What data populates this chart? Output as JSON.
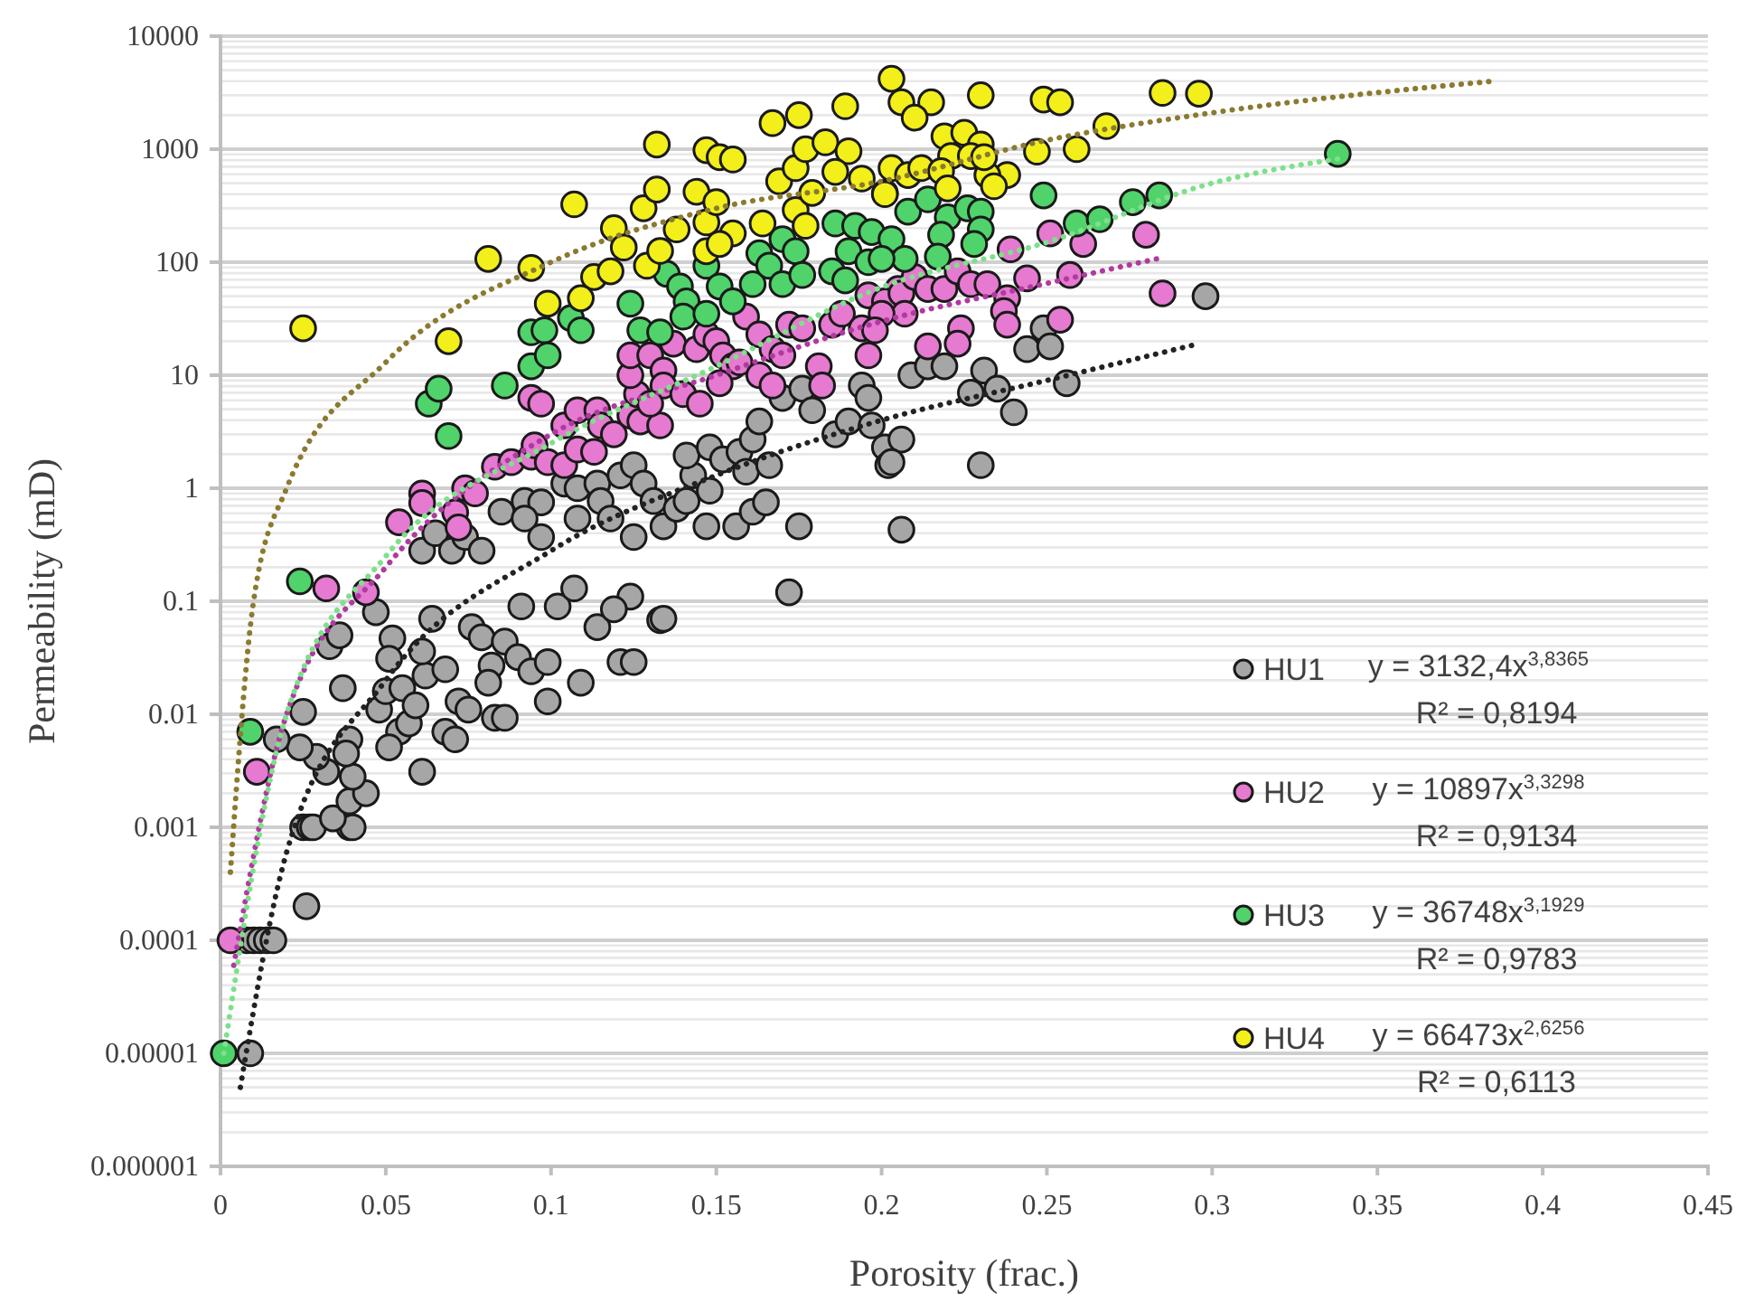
{
  "chart_data": {
    "type": "scatter",
    "xlabel": "Porosity (frac.)",
    "ylabel": "Permeability (mD)",
    "xlim": [
      0,
      0.45
    ],
    "xticks": [
      0,
      0.05,
      0.1,
      0.15,
      0.2,
      0.25,
      0.3,
      0.35,
      0.4,
      0.45
    ],
    "ylim": [
      1e-06,
      10000
    ],
    "yticks": [
      {
        "value": 1e-06,
        "label": "0.000001"
      },
      {
        "value": 1e-05,
        "label": "0.00001"
      },
      0.0001,
      0.001,
      0.01,
      0.1,
      1,
      10,
      100,
      1000,
      10000
    ],
    "log": "y",
    "grid": "y",
    "legend": "right",
    "marker": "circle",
    "annotations": [
      "y = 3132,4x$^{3,8365}$",
      "R² = 0,8194",
      "y = 10897x$^{3,3298}$",
      "R² = 0,9134",
      "y = 36748x$^{3,1929}$",
      "R² = 0,9783",
      "y = 66473x$^{2,6256}$",
      "R² = 0,6113"
    ],
    "series": [
      {
        "name": "HU1",
        "color": "#a6a6a6",
        "x": [
          0.008,
          0.01,
          0.012,
          0.014,
          0.016,
          0.009,
          0.026,
          0.025,
          0.027,
          0.028,
          0.039,
          0.04,
          0.034,
          0.039,
          0.044,
          0.04,
          0.032,
          0.029,
          0.024,
          0.017,
          0.025,
          0.039,
          0.038,
          0.037,
          0.033,
          0.036,
          0.047,
          0.052,
          0.051,
          0.061,
          0.054,
          0.051,
          0.048,
          0.05,
          0.057,
          0.055,
          0.059,
          0.062,
          0.061,
          0.064,
          0.068,
          0.068,
          0.071,
          0.072,
          0.075,
          0.076,
          0.079,
          0.082,
          0.083,
          0.086,
          0.081,
          0.086,
          0.09,
          0.094,
          0.099,
          0.099,
          0.109,
          0.121,
          0.125,
          0.133,
          0.172,
          0.134,
          0.114,
          0.124,
          0.119,
          0.091,
          0.102,
          0.107,
          0.061,
          0.065,
          0.07,
          0.074,
          0.079,
          0.085,
          0.092,
          0.097,
          0.092,
          0.097,
          0.104,
          0.108,
          0.114,
          0.115,
          0.121,
          0.125,
          0.128,
          0.131,
          0.108,
          0.118,
          0.125,
          0.134,
          0.138,
          0.141,
          0.143,
          0.141,
          0.148,
          0.152,
          0.157,
          0.161,
          0.163,
          0.148,
          0.147,
          0.156,
          0.161,
          0.165,
          0.175,
          0.159,
          0.166,
          0.17,
          0.176,
          0.179,
          0.186,
          0.19,
          0.194,
          0.196,
          0.201,
          0.202,
          0.197,
          0.206,
          0.203,
          0.206,
          0.209,
          0.214,
          0.219,
          0.227,
          0.231,
          0.235,
          0.24,
          0.23,
          0.244,
          0.249,
          0.251,
          0.256,
          0.298
        ],
        "values": [
          0.0001,
          0.0001,
          0.0001,
          0.0001,
          0.0001,
          1e-05,
          0.0002,
          0.001,
          0.001,
          0.001,
          0.001,
          0.001,
          0.0012,
          0.0017,
          0.002,
          0.0028,
          0.0031,
          0.0042,
          0.0051,
          0.006,
          0.0105,
          0.006,
          0.0045,
          0.017,
          0.04,
          0.05,
          0.08,
          0.047,
          0.031,
          0.0031,
          0.007,
          0.0051,
          0.011,
          0.016,
          0.0083,
          0.017,
          0.012,
          0.022,
          0.036,
          0.07,
          0.025,
          0.007,
          0.006,
          0.013,
          0.011,
          0.059,
          0.048,
          0.027,
          0.0093,
          0.0093,
          0.019,
          0.044,
          0.032,
          0.024,
          0.029,
          0.013,
          0.019,
          0.029,
          0.029,
          0.068,
          0.12,
          0.07,
          0.059,
          0.11,
          0.085,
          0.09,
          0.09,
          0.13,
          0.28,
          0.4,
          0.28,
          0.37,
          0.28,
          0.62,
          0.77,
          0.75,
          0.54,
          0.37,
          1.1,
          1,
          1.1,
          0.77,
          1.3,
          1.6,
          1.1,
          0.77,
          0.54,
          0.54,
          0.37,
          0.46,
          0.66,
          0.77,
          1.3,
          1.95,
          2.3,
          1.8,
          2.1,
          2.7,
          3.9,
          0.95,
          0.46,
          0.46,
          0.62,
          0.75,
          0.46,
          1.4,
          1.6,
          6.3,
          7.6,
          4.9,
          3,
          3.9,
          8.1,
          6.3,
          2.3,
          1.6,
          3.6,
          2.7,
          1.7,
          0.43,
          10,
          12,
          12,
          7,
          11,
          7.6,
          4.7,
          1.6,
          17,
          26,
          18,
          8.5,
          50
        ]
      },
      {
        "name": "HU2",
        "color": "#e57ad0",
        "x": [
          0.003,
          0.011,
          0.032,
          0.044,
          0.054,
          0.061,
          0.061,
          0.071,
          0.072,
          0.074,
          0.077,
          0.083,
          0.088,
          0.094,
          0.095,
          0.099,
          0.104,
          0.108,
          0.113,
          0.104,
          0.108,
          0.114,
          0.115,
          0.119,
          0.094,
          0.097,
          0.124,
          0.127,
          0.133,
          0.126,
          0.124,
          0.124,
          0.13,
          0.134,
          0.134,
          0.13,
          0.14,
          0.145,
          0.137,
          0.144,
          0.147,
          0.15,
          0.152,
          0.155,
          0.151,
          0.157,
          0.159,
          0.163,
          0.167,
          0.163,
          0.167,
          0.17,
          0.172,
          0.176,
          0.181,
          0.182,
          0.185,
          0.188,
          0.194,
          0.196,
          0.196,
          0.205,
          0.201,
          0.206,
          0.21,
          0.214,
          0.219,
          0.223,
          0.227,
          0.232,
          0.238,
          0.237,
          0.238,
          0.224,
          0.223,
          0.214,
          0.207,
          0.2,
          0.198,
          0.239,
          0.251,
          0.261,
          0.28,
          0.244,
          0.257,
          0.254,
          0.285
        ],
        "values": [
          0.0001,
          0.0031,
          0.13,
          0.12,
          0.5,
          0.9,
          0.74,
          0.61,
          0.45,
          1,
          0.9,
          1.55,
          1.7,
          1.9,
          2.4,
          1.7,
          1.6,
          2.2,
          2.1,
          3.6,
          4.9,
          4.9,
          3.6,
          3,
          6.3,
          5.6,
          4.4,
          3.9,
          3.6,
          6.8,
          10,
          15,
          15,
          11,
          8.1,
          5.6,
          6.8,
          5.6,
          19,
          17,
          23,
          20,
          15,
          12,
          8.5,
          13,
          33,
          23,
          17,
          10,
          8.1,
          15,
          28,
          26,
          12,
          8.1,
          28,
          35,
          26,
          15,
          51,
          58,
          45,
          53,
          74,
          58,
          58,
          83,
          64,
          64,
          48,
          37,
          28,
          26,
          19,
          18,
          35,
          35,
          25,
          130,
          180,
          145,
          175,
          72,
          77,
          31,
          53
        ]
      },
      {
        "name": "HU3",
        "color": "#4fd36a",
        "x": [
          0.001,
          0.009,
          0.024,
          0.063,
          0.066,
          0.069,
          0.086,
          0.094,
          0.098,
          0.094,
          0.099,
          0.106,
          0.109,
          0.124,
          0.127,
          0.133,
          0.135,
          0.139,
          0.141,
          0.14,
          0.147,
          0.147,
          0.151,
          0.155,
          0.161,
          0.163,
          0.166,
          0.17,
          0.17,
          0.174,
          0.176,
          0.186,
          0.192,
          0.197,
          0.19,
          0.196,
          0.185,
          0.189,
          0.203,
          0.208,
          0.214,
          0.22,
          0.226,
          0.23,
          0.23,
          0.218,
          0.228,
          0.217,
          0.207,
          0.2,
          0.249,
          0.276,
          0.284,
          0.259,
          0.266,
          0.338
        ],
        "values": [
          1e-05,
          0.007,
          0.15,
          5.6,
          7.6,
          2.9,
          8.1,
          24,
          25,
          12,
          15,
          32,
          25,
          43,
          25,
          24,
          79,
          61,
          45,
          33,
          35,
          93,
          61,
          45,
          64,
          120,
          93,
          160,
          64,
          125,
          77,
          220,
          210,
          185,
          125,
          100,
          83,
          69,
          160,
          280,
          360,
          250,
          300,
          280,
          195,
          175,
          145,
          112,
          107,
          107,
          390,
          340,
          390,
          220,
          240,
          910
        ]
      },
      {
        "name": "HU4",
        "color": "#f2ef1a",
        "x": [
          0.025,
          0.069,
          0.081,
          0.094,
          0.099,
          0.107,
          0.113,
          0.109,
          0.118,
          0.119,
          0.122,
          0.128,
          0.132,
          0.132,
          0.129,
          0.133,
          0.138,
          0.144,
          0.147,
          0.151,
          0.155,
          0.147,
          0.15,
          0.155,
          0.147,
          0.151,
          0.164,
          0.167,
          0.175,
          0.189,
          0.169,
          0.174,
          0.177,
          0.183,
          0.19,
          0.174,
          0.179,
          0.186,
          0.194,
          0.177,
          0.201,
          0.203,
          0.206,
          0.215,
          0.21,
          0.23,
          0.249,
          0.254,
          0.285,
          0.296,
          0.268,
          0.247,
          0.259,
          0.238,
          0.232,
          0.219,
          0.225,
          0.23,
          0.221,
          0.227,
          0.231,
          0.203,
          0.208,
          0.212,
          0.218,
          0.201,
          0.22,
          0.234
        ],
        "values": [
          26,
          20,
          107,
          89,
          43,
          325,
          74,
          48,
          83,
          200,
          135,
          300,
          440,
          1100,
          93,
          126,
          195,
          420,
          980,
          850,
          810,
          225,
          340,
          180,
          125,
          145,
          220,
          1700,
          2000,
          2400,
          520,
          680,
          1000,
          1150,
          960,
          290,
          410,
          630,
          550,
          210,
          410,
          4200,
          2600,
          2600,
          1900,
          3000,
          2750,
          2600,
          3150,
          3100,
          1600,
          950,
          1000,
          590,
          590,
          1300,
          1400,
          1100,
          870,
          870,
          850,
          680,
          590,
          680,
          640,
          400,
          450,
          470
        ]
      },
      {
        "type": "line",
        "marker": "none",
        "color": "#222222",
        "line_style": "dotted",
        "x": [
          0.006,
          0.02,
          0.05,
          0.1,
          0.15,
          0.2,
          0.25,
          0.296
        ],
        "values": [
          5e-06,
          0.0006,
          0.02,
          0.28,
          1.3,
          4,
          9,
          19
        ]
      },
      {
        "type": "line",
        "marker": "none",
        "color": "#b03aa0",
        "line_style": "dotted",
        "x": [
          0.004,
          0.02,
          0.05,
          0.1,
          0.15,
          0.2,
          0.25,
          0.285
        ],
        "values": [
          6e-05,
          0.01,
          0.2,
          3,
          10,
          30,
          65,
          110
        ]
      },
      {
        "type": "line",
        "marker": "none",
        "color": "#7ee08a",
        "line_style": "dotted",
        "x": [
          0.001,
          0.02,
          0.05,
          0.1,
          0.15,
          0.2,
          0.25,
          0.3,
          0.338
        ],
        "values": [
          1e-05,
          0.01,
          0.25,
          2.5,
          12,
          60,
          150,
          500,
          820
        ]
      },
      {
        "type": "line",
        "marker": "none",
        "color": "#8b7a30",
        "line_style": "dotted",
        "x": [
          0.003,
          0.01,
          0.02,
          0.05,
          0.1,
          0.15,
          0.2,
          0.25,
          0.3,
          0.385
        ],
        "values": [
          0.0004,
          0.1,
          1,
          13,
          100,
          300,
          520,
          1200,
          2100,
          4000
        ]
      }
    ]
  }
}
